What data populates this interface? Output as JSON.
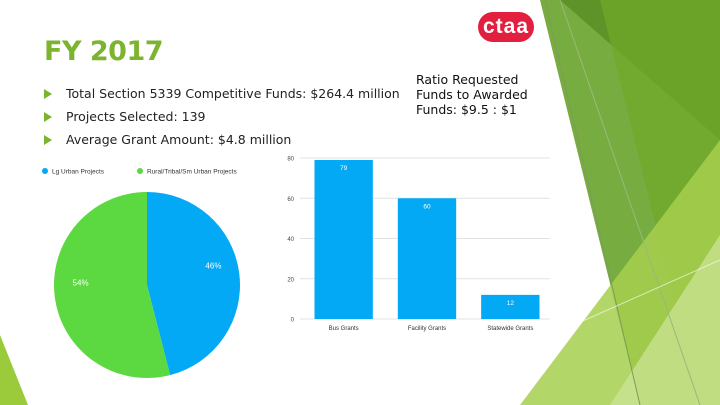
{
  "logo": {
    "text": "ctaa",
    "color": "#e31f3f"
  },
  "slide": {
    "title": "FY 2017",
    "bullets": [
      "Total Section 5339 Competitive Funds: $264.4 million",
      "Projects Selected: 139",
      "Average Grant Amount: $4.8 million"
    ],
    "ratio_text": "Ratio Requested Funds to Awarded Funds: $9.5 : $1"
  },
  "colors": {
    "accent_green": "#7cb32f",
    "pie_blue": "#03a9f4",
    "pie_green": "#5cd940",
    "bar_blue": "#03a9f4"
  },
  "chart_data": [
    {
      "type": "pie",
      "legend": [
        "Lg Urban Projects",
        "Rural/Tribal/Sm Urban Projects"
      ],
      "legend_position": "top-left",
      "values": [
        46,
        54
      ],
      "labels": [
        "46%",
        "54%"
      ]
    },
    {
      "type": "bar",
      "categories": [
        "Bus Grants",
        "Facility Grants",
        "Statewide Grants"
      ],
      "values": [
        79,
        60,
        12
      ],
      "ylim": [
        0,
        80
      ],
      "yticks": [
        0,
        20,
        40,
        60,
        80
      ],
      "grid": true
    }
  ]
}
